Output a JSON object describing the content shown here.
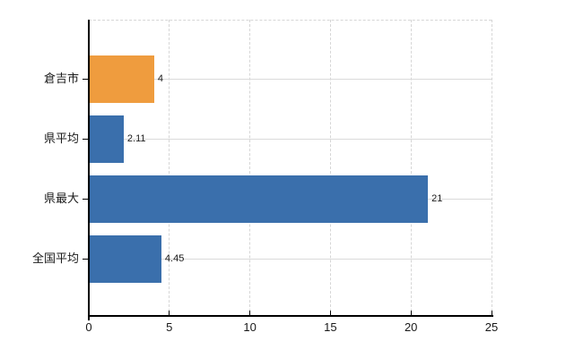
{
  "chart_data": {
    "type": "bar",
    "orientation": "horizontal",
    "title": "",
    "xlabel": "",
    "ylabel": "",
    "categories": [
      "倉吉市",
      "県平均",
      "県最大",
      "全国平均"
    ],
    "values": [
      4,
      2.11,
      21,
      4.45
    ],
    "value_labels": [
      "4",
      "2.11",
      "21",
      "4.45"
    ],
    "bar_colors": [
      "#EF9C3E",
      "#3A6FAC",
      "#3A6FAC",
      "#3A6FAC"
    ],
    "xlim": [
      0,
      25
    ],
    "xticks": [
      0,
      5,
      10,
      15,
      20,
      25
    ],
    "xtick_labels": [
      "0",
      "5",
      "10",
      "15",
      "20",
      "25"
    ],
    "grid": true,
    "legend_position": "none"
  },
  "colors": {
    "highlight_bar": "#EF9C3E",
    "default_bar": "#3A6FAC",
    "gridline_dashed": "#D6D6D6",
    "gridline_solid": "#DADADA",
    "axis": "#000000",
    "text": "#191919",
    "background": "#FFFFFF"
  }
}
